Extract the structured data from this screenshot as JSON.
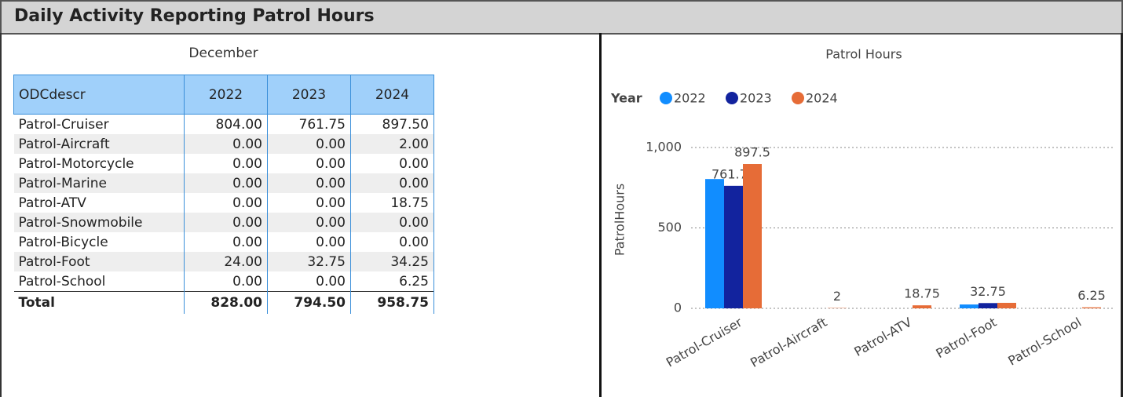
{
  "header": {
    "title": "Daily Activity Reporting Patrol Hours"
  },
  "table": {
    "title": "December",
    "columns": [
      "ODCdescr",
      "2022",
      "2023",
      "2024"
    ],
    "rows": [
      [
        "Patrol-Cruiser",
        "804.00",
        "761.75",
        "897.50"
      ],
      [
        "Patrol-Aircraft",
        "0.00",
        "0.00",
        "2.00"
      ],
      [
        "Patrol-Motorcycle",
        "0.00",
        "0.00",
        "0.00"
      ],
      [
        "Patrol-Marine",
        "0.00",
        "0.00",
        "0.00"
      ],
      [
        "Patrol-ATV",
        "0.00",
        "0.00",
        "18.75"
      ],
      [
        "Patrol-Snowmobile",
        "0.00",
        "0.00",
        "0.00"
      ],
      [
        "Patrol-Bicycle",
        "0.00",
        "0.00",
        "0.00"
      ],
      [
        "Patrol-Foot",
        "24.00",
        "32.75",
        "34.25"
      ],
      [
        "Patrol-School",
        "0.00",
        "0.00",
        "6.25"
      ]
    ],
    "total": [
      "Total",
      "828.00",
      "794.50",
      "958.75"
    ]
  },
  "chart_data": {
    "type": "bar",
    "title": "Patrol Hours",
    "y_label": "PatrolHours",
    "legend_title": "Year",
    "categories": [
      "Patrol-Cruiser",
      "Patrol-Aircraft",
      "Patrol-ATV",
      "Patrol-Foot",
      "Patrol-School"
    ],
    "series": [
      {
        "name": "2022",
        "color": "#118dff",
        "values": [
          804,
          0,
          0,
          24,
          0
        ],
        "value_labels": [
          null,
          null,
          null,
          null,
          null
        ]
      },
      {
        "name": "2023",
        "color": "#12239e",
        "values": [
          761.75,
          0,
          0,
          32.75,
          0
        ],
        "value_labels": [
          "761.75",
          null,
          null,
          "32.75",
          null
        ]
      },
      {
        "name": "2024",
        "color": "#e66c37",
        "values": [
          897.5,
          2,
          18.75,
          34.25,
          6.25
        ],
        "value_labels": [
          "897.5",
          "2",
          "18.75",
          null,
          "6.25"
        ]
      }
    ],
    "ylim": [
      0,
      1000
    ],
    "yticks": [
      0,
      500,
      {
        "value": 1000,
        "label": "1,000"
      }
    ],
    "grid": true,
    "legend": "top-left"
  }
}
